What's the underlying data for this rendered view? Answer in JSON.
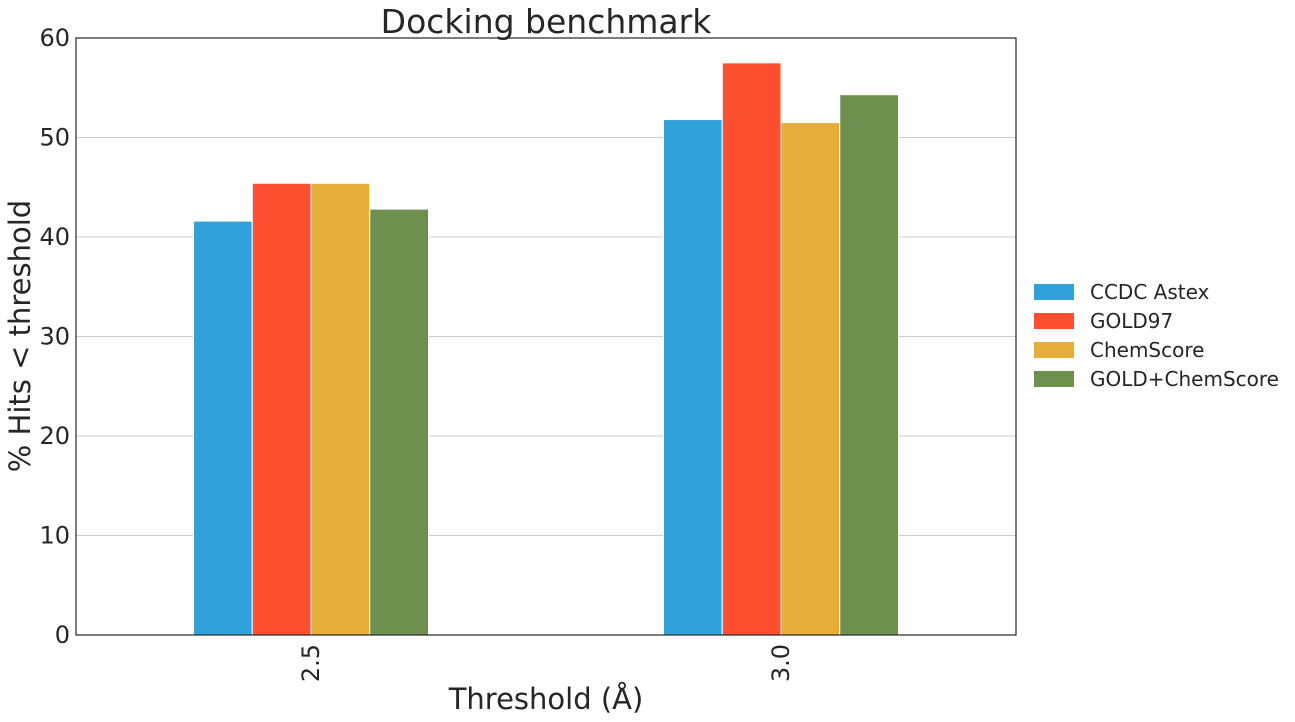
{
  "chart_data": {
    "type": "bar",
    "title": "Docking benchmark",
    "xlabel": "Threshold (Å)",
    "ylabel": "% Hits < threshold",
    "categories": [
      "2.5",
      "3.0"
    ],
    "series": [
      {
        "name": "CCDC Astex",
        "color": "#30a2da",
        "values": [
          41.6,
          51.8
        ]
      },
      {
        "name": "GOLD97",
        "color": "#fc4f30",
        "values": [
          45.4,
          57.5
        ]
      },
      {
        "name": "ChemScore",
        "color": "#e5ae38",
        "values": [
          45.4,
          51.5
        ]
      },
      {
        "name": "GOLD+ChemScore",
        "color": "#6d904f",
        "values": [
          42.8,
          54.3
        ]
      }
    ],
    "ylim": [
      0,
      60
    ],
    "yticks": [
      0,
      10,
      20,
      30,
      40,
      50,
      60
    ],
    "grid": "y-axis on",
    "legend": "outside-right"
  }
}
